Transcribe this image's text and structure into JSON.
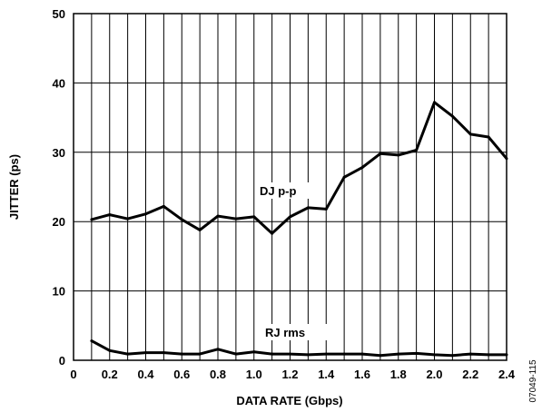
{
  "chart_data": {
    "type": "line",
    "xlabel": "DATA RATE (Gbps)",
    "ylabel": "JITTER (ps)",
    "xlim": [
      0,
      2.4
    ],
    "ylim": [
      0,
      50
    ],
    "x_ticks": [
      "0",
      "0.2",
      "0.4",
      "0.6",
      "0.8",
      "1.0",
      "1.2",
      "1.4",
      "1.6",
      "1.8",
      "2.0",
      "2.2",
      "2.4"
    ],
    "y_ticks": [
      "0",
      "10",
      "20",
      "30",
      "40",
      "50"
    ],
    "x_tick_values": [
      0,
      0.2,
      0.4,
      0.6,
      0.8,
      1.0,
      1.2,
      1.4,
      1.6,
      1.8,
      2.0,
      2.2,
      2.4
    ],
    "y_tick_values": [
      0,
      10,
      20,
      30,
      40,
      50
    ],
    "grid": true,
    "x": [
      0.1,
      0.2,
      0.3,
      0.4,
      0.5,
      0.6,
      0.7,
      0.8,
      0.9,
      1.0,
      1.1,
      1.2,
      1.3,
      1.4,
      1.5,
      1.6,
      1.7,
      1.8,
      1.9,
      2.0,
      2.1,
      2.2,
      2.3,
      2.4
    ],
    "series": [
      {
        "name": "DJ p-p",
        "values": [
          20.3,
          21.0,
          20.4,
          21.1,
          22.2,
          20.3,
          18.8,
          20.8,
          20.4,
          20.7,
          18.3,
          20.7,
          22.0,
          21.8,
          26.4,
          27.8,
          29.8,
          29.6,
          30.3,
          37.2,
          35.2,
          32.6,
          32.2,
          29.1
        ],
        "color": "#000000"
      },
      {
        "name": "RJ rms",
        "values": [
          2.8,
          1.4,
          0.9,
          1.1,
          1.1,
          0.9,
          0.9,
          1.6,
          0.9,
          1.2,
          0.9,
          0.9,
          0.8,
          0.9,
          0.9,
          0.9,
          0.7,
          0.9,
          1.0,
          0.8,
          0.7,
          0.9,
          0.8,
          0.8
        ],
        "color": "#000000"
      }
    ],
    "annotations": [
      "DJ p-p",
      "RJ rms"
    ]
  },
  "figure_id": "07049-115"
}
